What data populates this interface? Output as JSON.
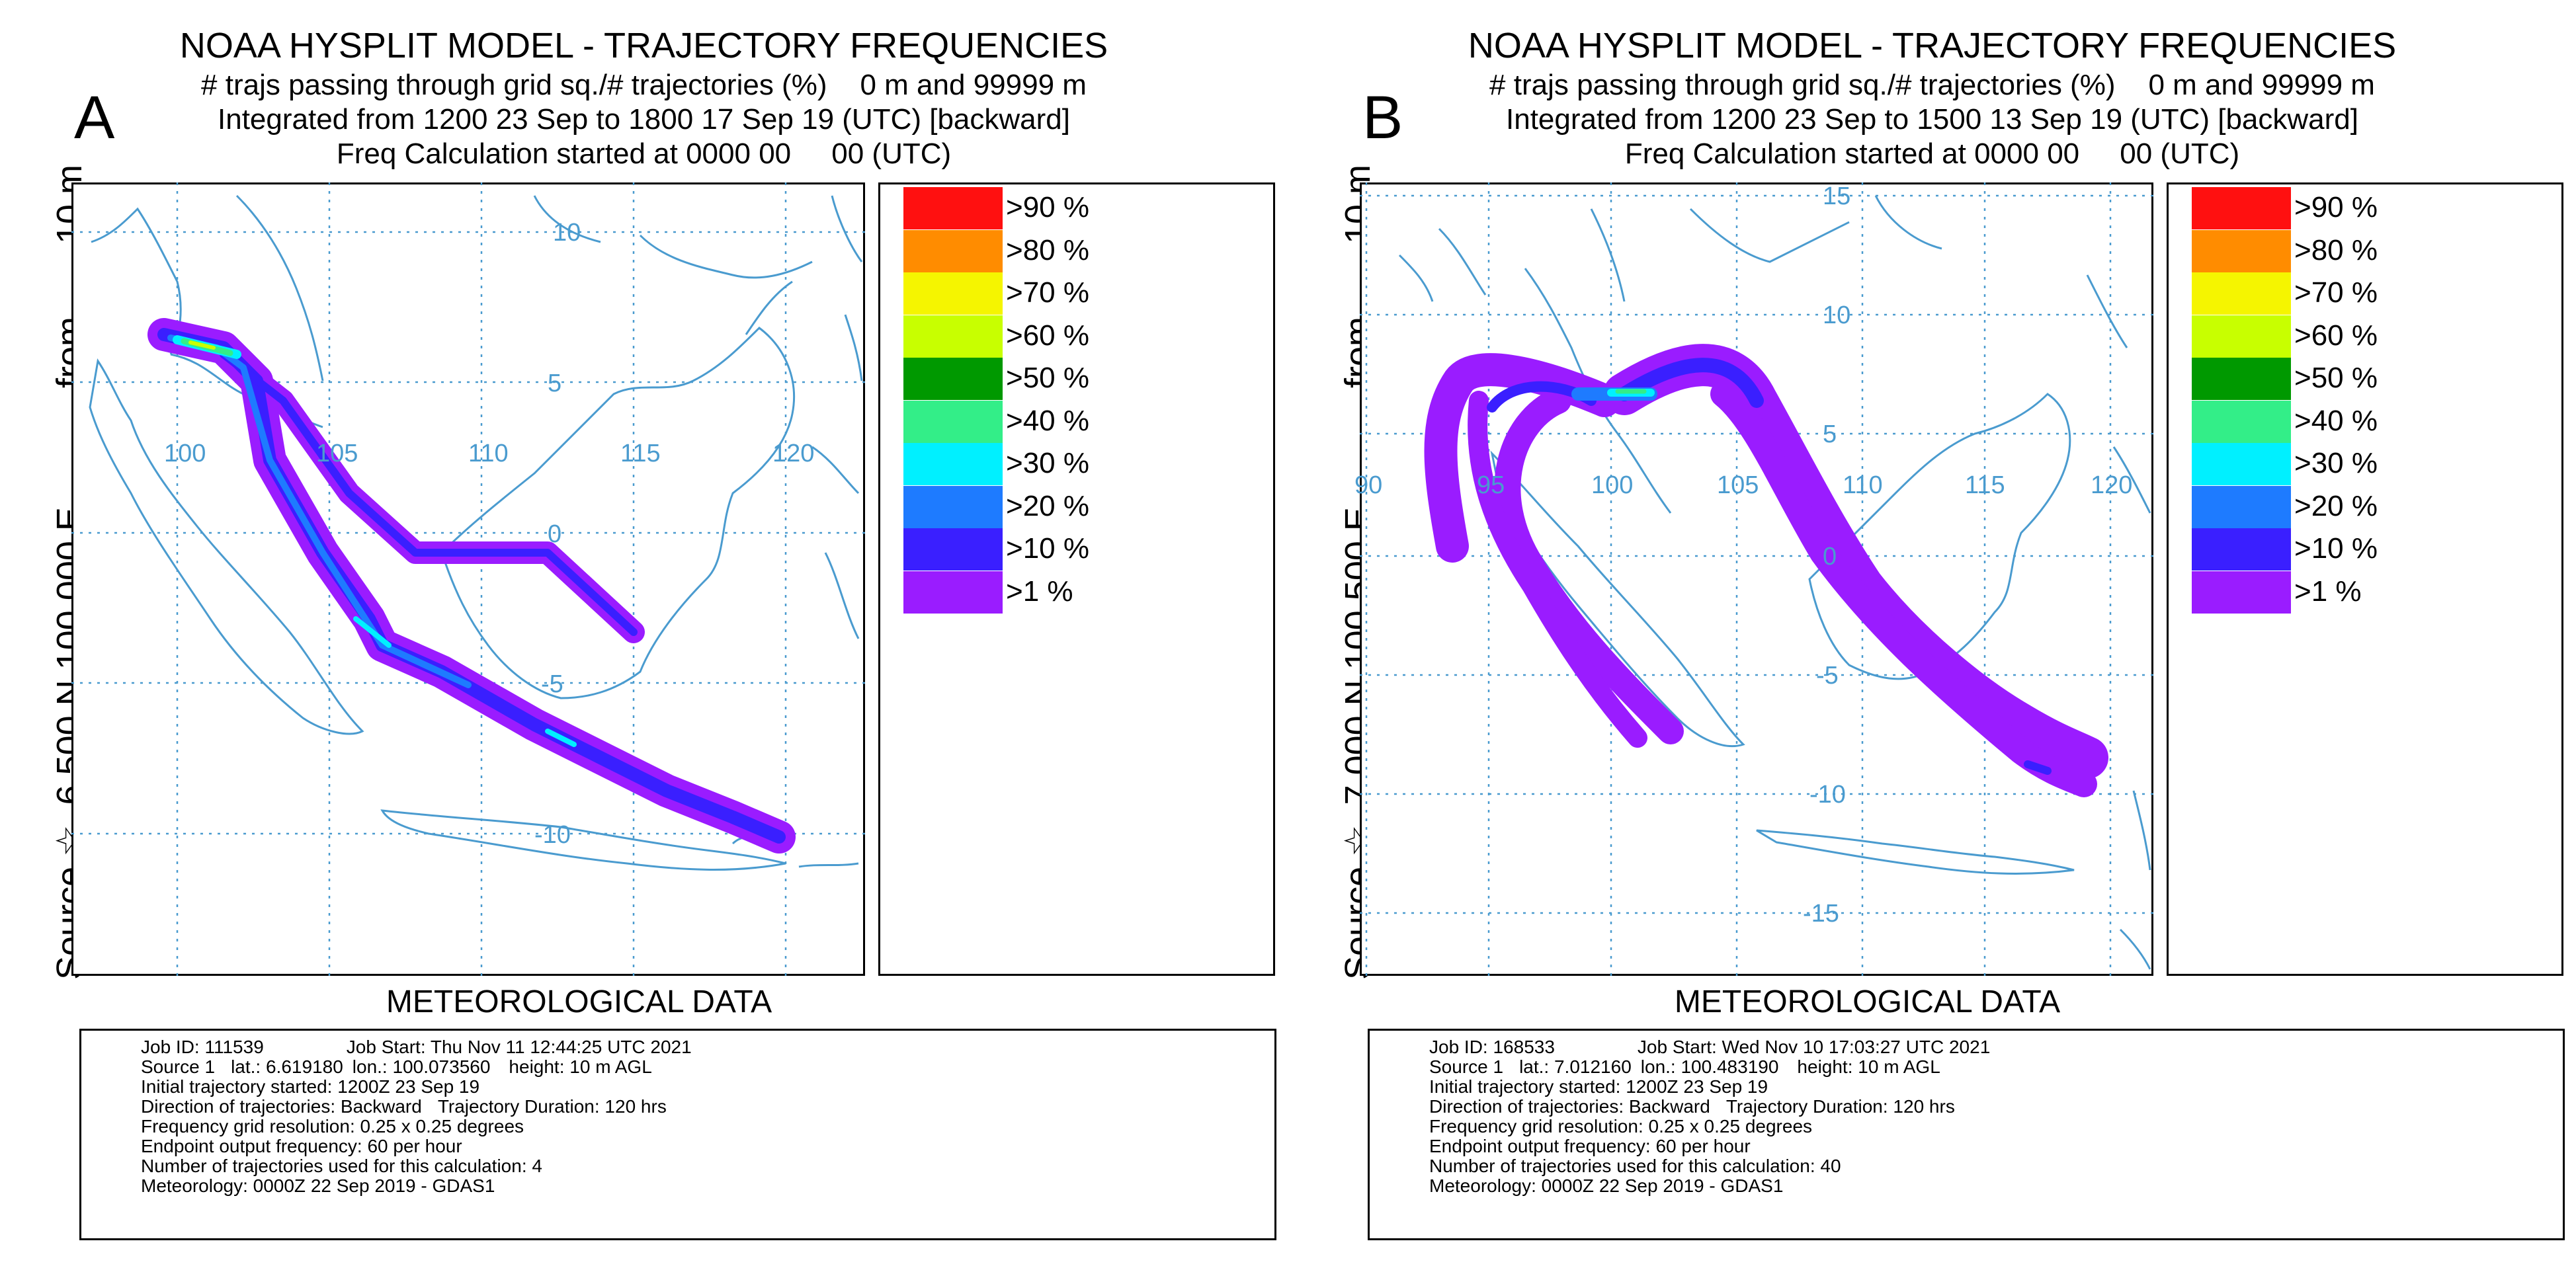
{
  "colors": {
    "coast": "#4a9bcf",
    "grid": "#4a9bcf",
    "label": "#4a9bcf"
  },
  "legend": [
    {
      "label": ">90 %",
      "color": "#ff1010"
    },
    {
      "label": ">80 %",
      "color": "#ff8c00"
    },
    {
      "label": ">70 %",
      "color": "#f5f500"
    },
    {
      "label": ">60 %",
      "color": "#c8ff00"
    },
    {
      "label": ">50 %",
      "color": "#009900"
    },
    {
      "label": ">40 %",
      "color": "#33ee88"
    },
    {
      "label": ">30 %",
      "color": "#00f0ff"
    },
    {
      "label": ">20 %",
      "color": "#1e7bff"
    },
    {
      "label": ">10 %",
      "color": "#3a1fff"
    },
    {
      "label": ">1 %",
      "color": "#9a1cff"
    }
  ],
  "panels": {
    "a": {
      "letter": "A",
      "title": "NOAA HYSPLIT MODEL - TRAJECTORY FREQUENCIES",
      "subtitle_left": "# trajs passing through grid sq./# trajectories (%)",
      "subtitle_right": "0 m and 99999 m",
      "integrated": "Integrated from 1200 23 Sep to 1800 17 Sep 19 (UTC) [backward]",
      "freq": "Freq Calculation started at 0000 00     00 (UTC)",
      "side": {
        "source": "Source ☆",
        "lat": "6.500",
        "ns": "N",
        "lon": "100.000",
        "ew": "E",
        "from": "from",
        "height": "10 m"
      },
      "met": "METEOROLOGICAL DATA",
      "info": {
        "job_id": "Job ID: 111539",
        "job_start": "Job Start: Thu Nov 11 12:44:25 UTC 2021",
        "source": "Source 1",
        "lat": "lat.: 6.619180",
        "lon": "lon.: 100.073560",
        "height": "height: 10 m AGL",
        "initial": "Initial trajectory started: 1200Z 23 Sep 19",
        "direction": "Direction of trajectories: Backward",
        "duration": "Trajectory Duration: 120 hrs",
        "resolution": "Frequency grid resolution: 0.25 x 0.25 degrees",
        "endpoint": "Endpoint output frequency: 60 per hour",
        "number": "Number of trajectories used for this calculation: 4",
        "meteorology": "Meteorology: 0000Z 22 Sep 2019 - GDAS1"
      },
      "map": {
        "lat_labels": [
          {
            "text": "10",
            "lat": 10
          },
          {
            "text": "5",
            "lat": 5
          },
          {
            "text": "0",
            "lat": 0
          },
          {
            "text": "-5",
            "lat": -5
          },
          {
            "text": "-10",
            "lat": -10
          }
        ],
        "lon_labels": [
          {
            "text": "100",
            "lon": 100
          },
          {
            "text": "105",
            "lon": 105
          },
          {
            "text": "110",
            "lon": 110
          },
          {
            "text": "115",
            "lon": 115
          },
          {
            "text": "120",
            "lon": 120
          }
        ]
      }
    },
    "b": {
      "letter": "B",
      "title": "NOAA HYSPLIT MODEL - TRAJECTORY FREQUENCIES",
      "subtitle_left": "# trajs passing through grid sq./# trajectories (%)",
      "subtitle_right": "0 m and 99999 m",
      "integrated": "Integrated from 1200 23 Sep to 1500 13 Sep 19 (UTC) [backward]",
      "freq": "Freq Calculation started at 0000 00     00 (UTC)",
      "side": {
        "source": "Source ☆",
        "lat": "7.000",
        "ns": "N",
        "lon": "100.500",
        "ew": "E",
        "from": "from",
        "height": "10 m"
      },
      "met": "METEOROLOGICAL DATA",
      "info": {
        "job_id": "Job ID: 168533",
        "job_start": "Job Start: Wed Nov 10 17:03:27 UTC 2021",
        "source": "Source 1",
        "lat": "lat.: 7.012160",
        "lon": "lon.: 100.483190",
        "height": "height: 10 m AGL",
        "initial": "Initial trajectory started: 1200Z 23 Sep 19",
        "direction": "Direction of trajectories: Backward",
        "duration": "Trajectory Duration: 120 hrs",
        "resolution": "Frequency grid resolution: 0.25 x 0.25 degrees",
        "endpoint": "Endpoint output frequency: 60 per hour",
        "number": "Number of trajectories used for this calculation: 40",
        "meteorology": "Meteorology: 0000Z 22 Sep 2019 - GDAS1"
      },
      "map": {
        "lat_labels": [
          {
            "text": "15",
            "lat": 15
          },
          {
            "text": "10",
            "lat": 10
          },
          {
            "text": "5",
            "lat": 5
          },
          {
            "text": "0",
            "lat": 0
          },
          {
            "text": "-5",
            "lat": -5
          },
          {
            "text": "-10",
            "lat": -10
          },
          {
            "text": "-15",
            "lat": -15
          }
        ],
        "lon_labels": [
          {
            "text": "90",
            "lon": 90
          },
          {
            "text": "95",
            "lon": 95
          },
          {
            "text": "100",
            "lon": 100
          },
          {
            "text": "105",
            "lon": 105
          },
          {
            "text": "110",
            "lon": 110
          },
          {
            "text": "115",
            "lon": 115
          },
          {
            "text": "120",
            "lon": 120
          }
        ]
      }
    }
  }
}
